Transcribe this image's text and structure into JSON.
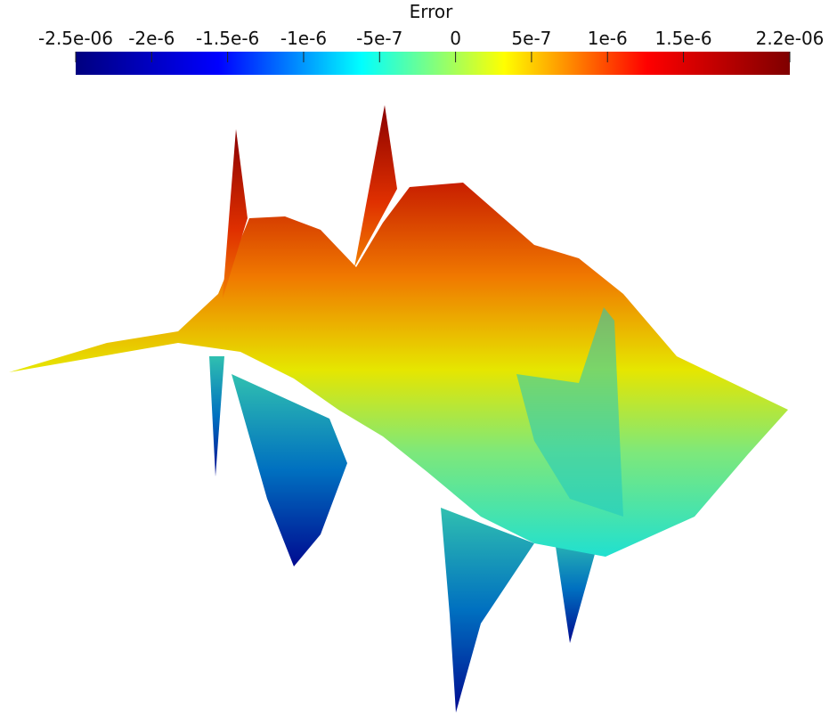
{
  "colorbar": {
    "title": "Error",
    "range": [
      -2.5e-06,
      2.2e-06
    ],
    "colors": [
      "#00007f",
      "#0000ff",
      "#00ffff",
      "#ffff00",
      "#ff0000",
      "#7f0000"
    ],
    "ticks": [
      {
        "value": -2.5e-06,
        "label": "-2.5e-06"
      },
      {
        "value": -2e-06,
        "label": "-2e-6"
      },
      {
        "value": -1.5e-06,
        "label": "-1.5e-6"
      },
      {
        "value": -1e-06,
        "label": "-1e-6"
      },
      {
        "value": -5e-07,
        "label": "-5e-7"
      },
      {
        "value": 0,
        "label": "0"
      },
      {
        "value": 5e-07,
        "label": "5e-7"
      },
      {
        "value": 1e-06,
        "label": "1e-6"
      },
      {
        "value": 1.5e-06,
        "label": "1.5e-6"
      },
      {
        "value": 2.2e-06,
        "label": "2.2e-06"
      }
    ]
  }
}
